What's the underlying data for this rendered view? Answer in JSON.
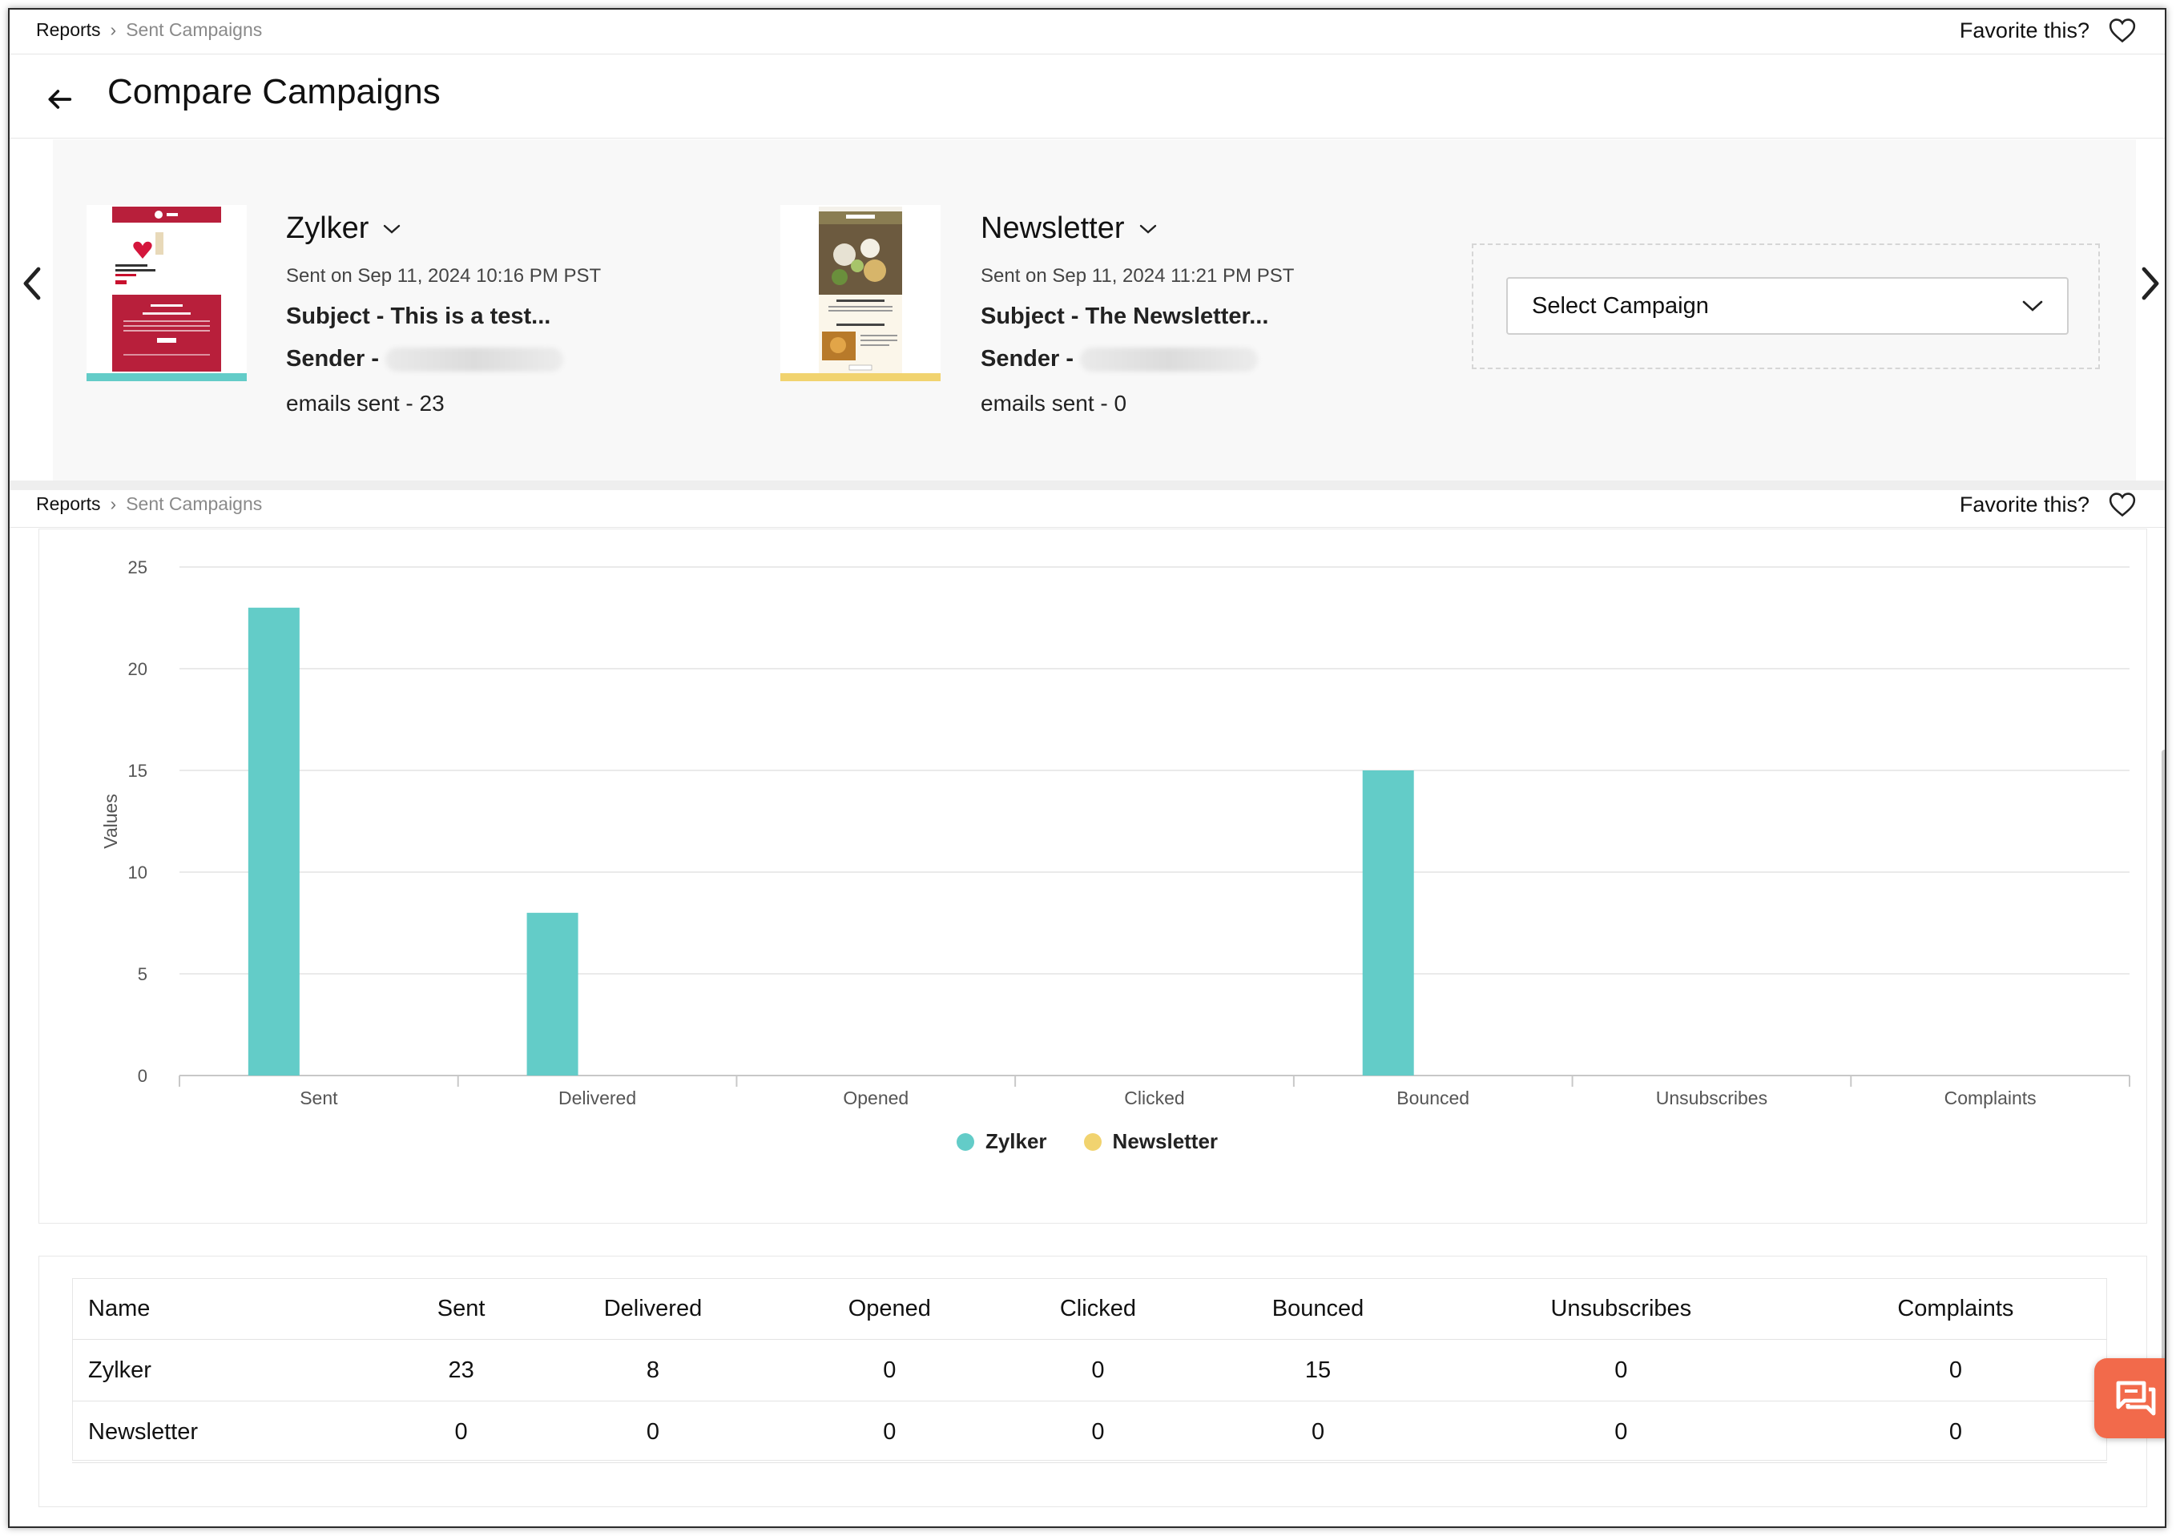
{
  "breadcrumb": {
    "root": "Reports",
    "current": "Sent Campaigns"
  },
  "favorite_label": "Favorite this?",
  "page_title": "Compare Campaigns",
  "campaigns": [
    {
      "name": "Zylker",
      "sent_on": "Sent on Sep 11, 2024 10:16 PM PST",
      "subject": "Subject - This is a test...",
      "sender_label": "Sender -",
      "emails_sent": "emails sent - 23",
      "color": "#63ccc8"
    },
    {
      "name": "Newsletter",
      "sent_on": "Sent on Sep 11, 2024 11:21 PM PST",
      "subject": "Subject - The Newsletter...",
      "sender_label": "Sender -",
      "emails_sent": "emails sent - 0",
      "color": "#f1d36f"
    }
  ],
  "select_campaign": {
    "placeholder": "Select Campaign"
  },
  "chart_data": {
    "type": "bar",
    "ylabel": "Values",
    "ylim": [
      0,
      25
    ],
    "yticks": [
      "0",
      "5",
      "10",
      "15",
      "20",
      "25"
    ],
    "categories": [
      "Sent",
      "Delivered",
      "Opened",
      "Clicked",
      "Bounced",
      "Unsubscribes",
      "Complaints"
    ],
    "series": [
      {
        "name": "Zylker",
        "values": [
          23,
          8,
          0,
          0,
          15,
          0,
          0
        ],
        "color": "#63ccc8"
      },
      {
        "name": "Newsletter",
        "values": [
          0,
          0,
          0,
          0,
          0,
          0,
          0
        ],
        "color": "#f1d36f"
      }
    ],
    "grid": true,
    "legend": "bottom"
  },
  "table": {
    "headers": [
      "Name",
      "Sent",
      "Delivered",
      "Opened",
      "Clicked",
      "Bounced",
      "Unsubscribes",
      "Complaints"
    ],
    "rows": [
      [
        "Zylker",
        "23",
        "8",
        "0",
        "0",
        "15",
        "0",
        "0"
      ],
      [
        "Newsletter",
        "0",
        "0",
        "0",
        "0",
        "0",
        "0",
        "0"
      ]
    ]
  },
  "icons": [
    "chevron-right-icon",
    "heart-icon",
    "back-arrow-icon",
    "chevron-down-icon",
    "chevron-left-icon",
    "chat-icon"
  ]
}
